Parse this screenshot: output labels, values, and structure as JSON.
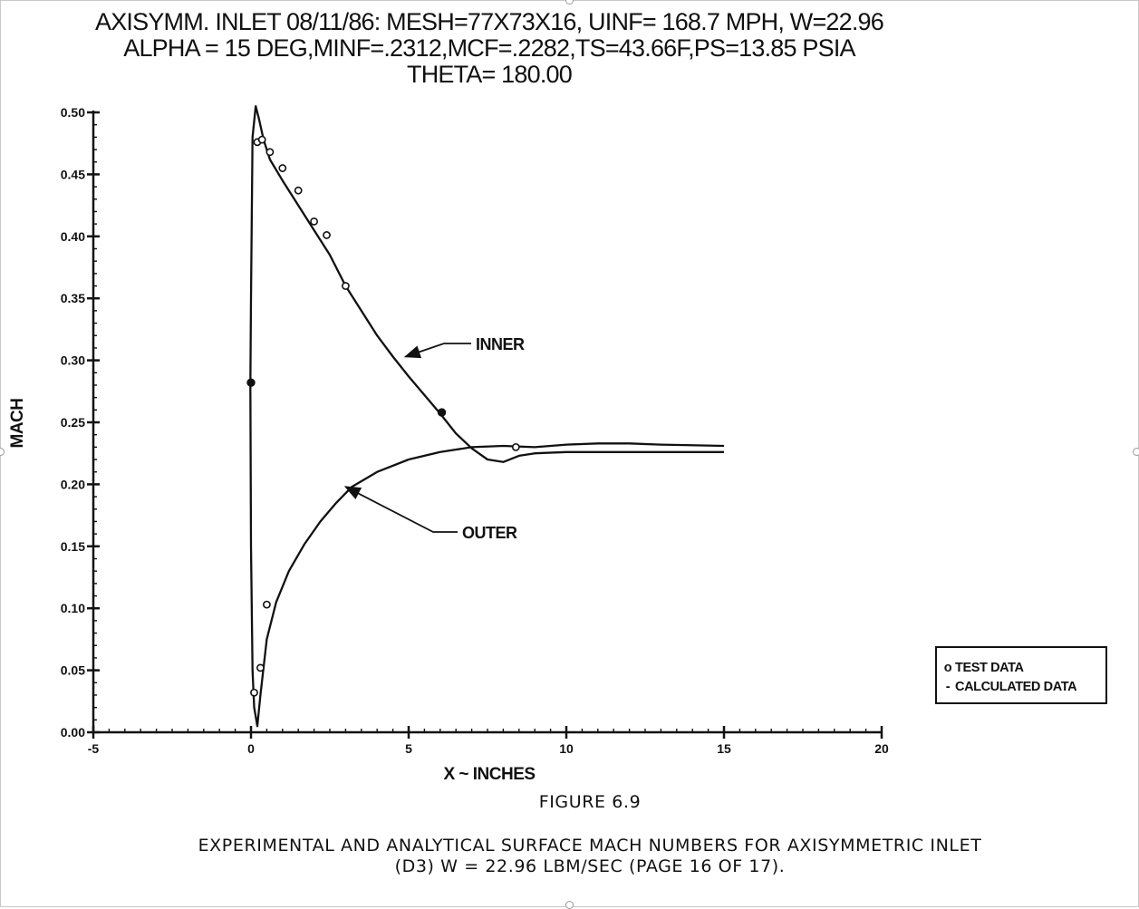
{
  "title_lines": [
    "AXISYMM. INLET 08/11/86: MESH=77X73X16, UINF= 168.7 MPH, W=22.96",
    "ALPHA = 15 DEG,MINF=.2312,MCF=.2282,TS=43.66F,PS=13.85 PSIA",
    "THETA= 180.00"
  ],
  "chart_data": {
    "type": "line",
    "title": "AXISYMM. INLET 08/11/86: MESH=77X73X16, UINF= 168.7 MPH, W=22.96 ALPHA = 15 DEG,MINF=.2312,MCF=.2282,TS=43.66F,PS=13.85 PSIA THETA= 180.00",
    "xlabel": "X ~ INCHES",
    "ylabel": "MACH",
    "xlim": [
      -5,
      20
    ],
    "ylim": [
      0.0,
      0.5
    ],
    "x_ticks": [
      -5,
      0,
      5,
      10,
      15,
      20
    ],
    "x_tick_labels": [
      "-5",
      "0",
      "5",
      "10",
      "15",
      "20"
    ],
    "y_ticks": [
      0.0,
      0.05,
      0.1,
      0.15,
      0.2,
      0.25,
      0.3,
      0.35,
      0.4,
      0.45,
      0.5
    ],
    "y_tick_labels": [
      "0.00",
      "0.05",
      "0.10",
      "0.15",
      "0.20",
      "0.25",
      "0.30",
      "0.35",
      "0.40",
      "0.45",
      "0.50"
    ],
    "grid": false,
    "legend_position": "bottom-right",
    "legend": [
      "TEST DATA",
      "CALCULATED DATA"
    ],
    "annotations": [
      {
        "text": "INNER",
        "points_to": {
          "x": 4.9,
          "y": 0.303
        }
      },
      {
        "text": "OUTER",
        "points_to": {
          "x": 3.0,
          "y": 0.198
        }
      }
    ],
    "series": [
      {
        "name": "CALCULATED DATA",
        "kind": "line",
        "x": [
          15,
          13,
          11,
          10,
          9,
          8.5,
          8,
          7.5,
          7,
          6.5,
          6,
          5.5,
          5,
          4.5,
          4,
          3.5,
          3,
          2.5,
          2,
          1.5,
          1,
          0.6,
          0.4,
          0.25,
          0.15,
          0.05,
          0,
          -0.02,
          0,
          0.05,
          0.1,
          0.2,
          0.3,
          0.5,
          0.8,
          1.2,
          1.7,
          2.2,
          2.7,
          3.2,
          4,
          5,
          6,
          7,
          8,
          9,
          10,
          11,
          12,
          13,
          15
        ],
        "y": [
          0.226,
          0.226,
          0.226,
          0.226,
          0.225,
          0.223,
          0.218,
          0.22,
          0.229,
          0.241,
          0.257,
          0.272,
          0.287,
          0.303,
          0.32,
          0.34,
          0.36,
          0.385,
          0.405,
          0.425,
          0.445,
          0.462,
          0.478,
          0.495,
          0.505,
          0.48,
          0.35,
          0.28,
          0.15,
          0.05,
          0.02,
          0.005,
          0.03,
          0.075,
          0.105,
          0.13,
          0.152,
          0.17,
          0.185,
          0.198,
          0.21,
          0.22,
          0.226,
          0.23,
          0.231,
          0.23,
          0.232,
          0.233,
          0.233,
          0.232,
          0.231
        ]
      },
      {
        "name": "TEST DATA",
        "kind": "points",
        "x": [
          0.2,
          0.35,
          0.6,
          1.0,
          1.5,
          2.0,
          2.4,
          3.0,
          8.4,
          0.5,
          0.3,
          0.1
        ],
        "y": [
          0.476,
          0.478,
          0.468,
          0.455,
          0.437,
          0.412,
          0.401,
          0.36,
          0.23,
          0.103,
          0.052,
          0.032
        ]
      },
      {
        "name": "FILLED POINTS",
        "kind": "filled-points",
        "x": [
          0,
          6.05
        ],
        "y": [
          0.282,
          0.258
        ]
      }
    ]
  },
  "legend_items": [
    {
      "symbol": "o",
      "label": "TEST DATA"
    },
    {
      "symbol": "-",
      "label": "CALCULATED DATA"
    }
  ],
  "caption": {
    "figure": "FIGURE 6.9",
    "line1": "EXPERIMENTAL AND ANALYTICAL SURFACE MACH NUMBERS FOR AXISYMMETRIC INLET",
    "line2": "(D3)  W = 22.96 LBM/SEC  (PAGE 16 OF 17)."
  }
}
